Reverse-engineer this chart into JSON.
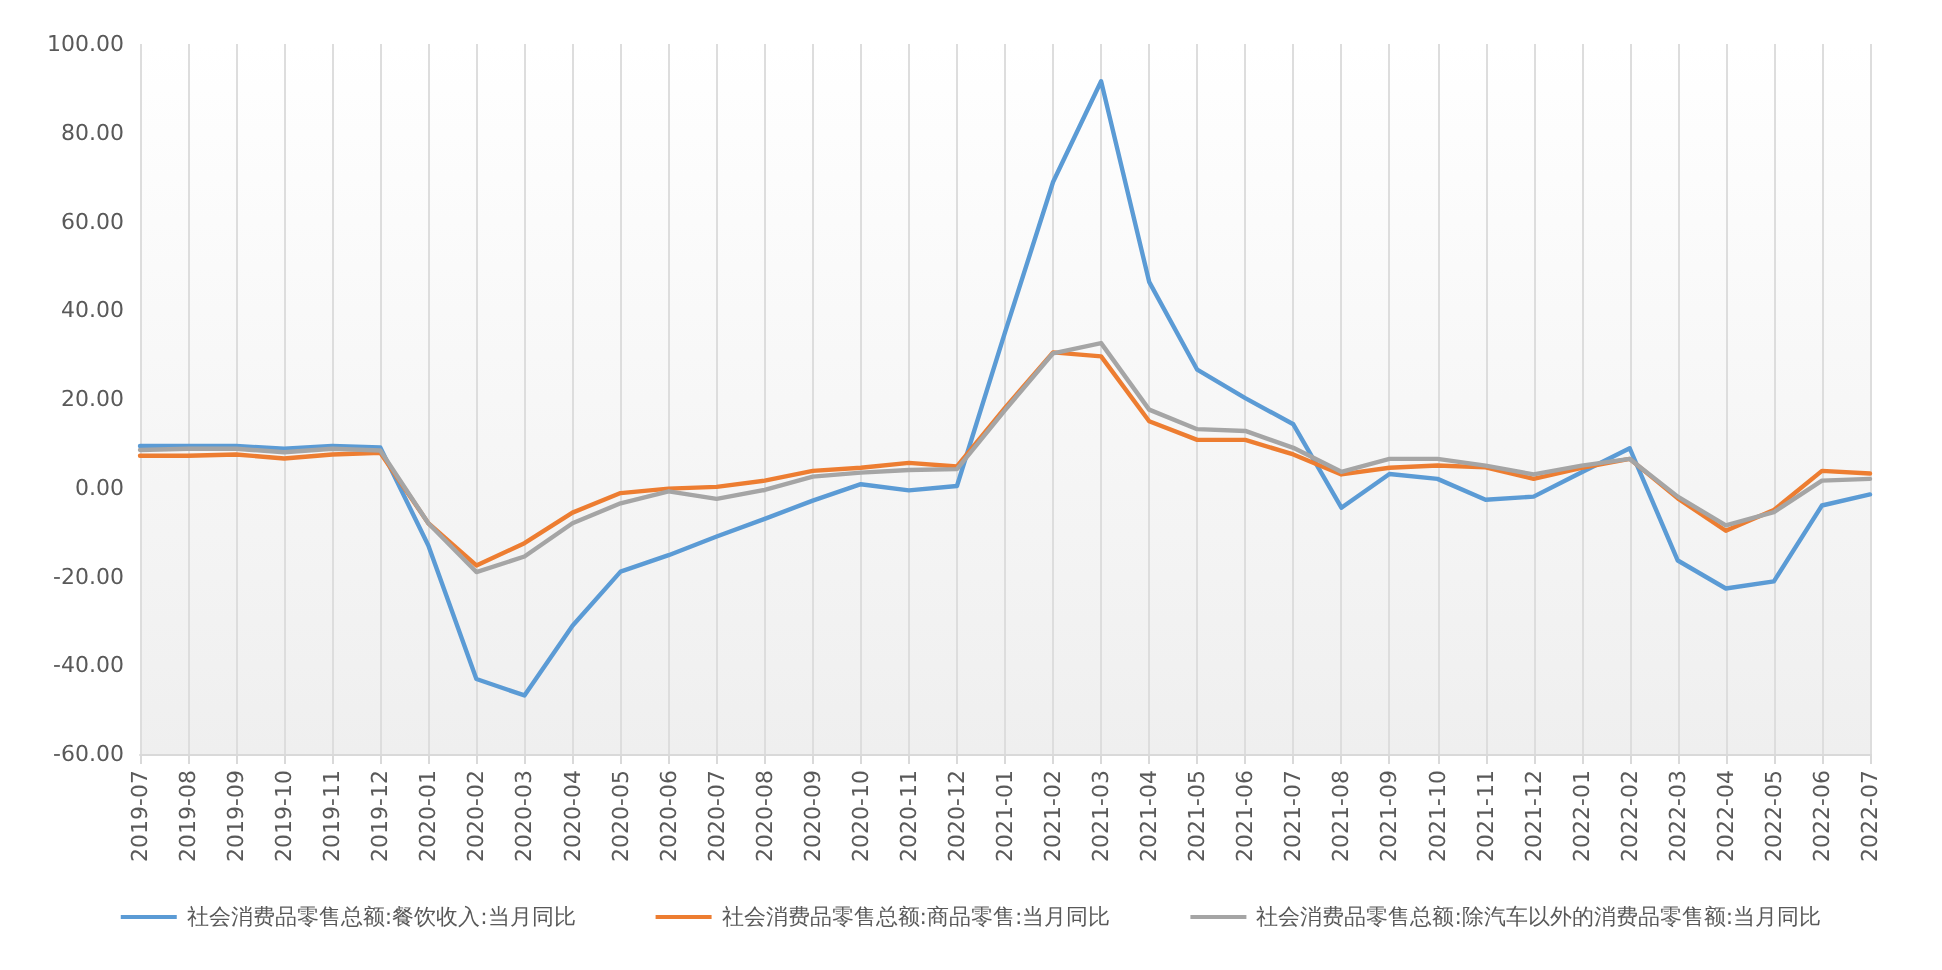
{
  "chart_data": {
    "type": "line",
    "categories": [
      "2019-07",
      "2019-08",
      "2019-09",
      "2019-10",
      "2019-11",
      "2019-12",
      "2020-01",
      "2020-02",
      "2020-03",
      "2020-04",
      "2020-05",
      "2020-06",
      "2020-07",
      "2020-08",
      "2020-09",
      "2020-10",
      "2020-11",
      "2020-12",
      "2021-01",
      "2021-02",
      "2021-03",
      "2021-04",
      "2021-05",
      "2021-06",
      "2021-07",
      "2021-08",
      "2021-09",
      "2021-10",
      "2021-11",
      "2021-12",
      "2022-01",
      "2022-02",
      "2022-03",
      "2022-04",
      "2022-05",
      "2022-06",
      "2022-07"
    ],
    "series": [
      {
        "name": "社会消费品零售总额:餐饮收入:当月同比",
        "color": "#5b9bd5",
        "values": [
          9.4,
          9.4,
          9.4,
          8.8,
          9.4,
          9.1,
          -13,
          -43.1,
          -46.8,
          -31.1,
          -18.9,
          -15.2,
          -11,
          -7,
          -2.9,
          0.8,
          -0.6,
          0.4,
          35,
          68.9,
          91.6,
          46.4,
          26.6,
          20.2,
          14.3,
          -4.5,
          3.1,
          2,
          -2.7,
          -2,
          3.5,
          8.9,
          -16.4,
          -22.7,
          -21.1,
          -4,
          -1.5
        ]
      },
      {
        "name": "社会消费品零售总额:商品零售:当月同比",
        "color": "#ed7d31",
        "values": [
          7.2,
          7.2,
          7.5,
          6.6,
          7.5,
          7.9,
          -8,
          -17.5,
          -12.5,
          -5.6,
          -1.2,
          -0.2,
          0.2,
          1.6,
          3.8,
          4.5,
          5.6,
          4.8,
          18,
          30.5,
          29.6,
          15,
          10.8,
          10.8,
          7.5,
          3,
          4.5,
          5,
          4.6,
          2,
          4.5,
          6.5,
          -2.4,
          -9.7,
          -5,
          3.8,
          3.2
        ]
      },
      {
        "name": "社会消费品零售总额:除汽车以外的消费品零售额:当月同比",
        "color": "#a5a5a5",
        "values": [
          8.5,
          8.8,
          8.8,
          8,
          8.8,
          8.4,
          -8,
          -19,
          -15.5,
          -8,
          -3.5,
          -0.8,
          -2.5,
          -0.5,
          2.5,
          3.4,
          4,
          4.2,
          17.5,
          30.3,
          32.6,
          17.6,
          13.2,
          12.8,
          9,
          3.6,
          6.5,
          6.5,
          5,
          3,
          5,
          6.5,
          -2,
          -8.5,
          -5.5,
          1.6,
          2
        ]
      }
    ],
    "ylim": [
      -60,
      100
    ],
    "yticks": [
      {
        "value": -60,
        "label": "-60.00"
      },
      {
        "value": -40,
        "label": "-40.00"
      },
      {
        "value": -20,
        "label": "-20.00"
      },
      {
        "value": 0,
        "label": "0.00"
      },
      {
        "value": 20,
        "label": "20.00"
      },
      {
        "value": 40,
        "label": "40.00"
      },
      {
        "value": 60,
        "label": "60.00"
      },
      {
        "value": 80,
        "label": "80.00"
      },
      {
        "value": 100,
        "label": "100.00"
      }
    ],
    "grid": "x",
    "legend": "bottom",
    "marker": "none",
    "line_style": "solid"
  }
}
